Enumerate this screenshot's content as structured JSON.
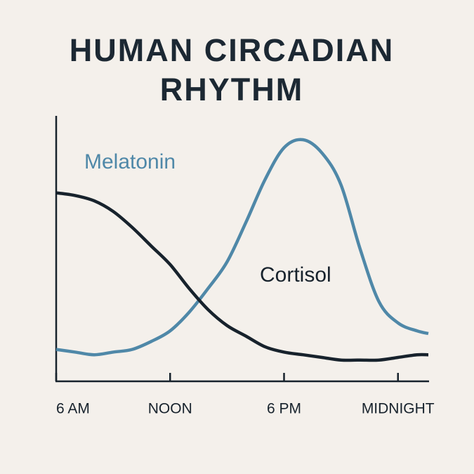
{
  "chart_data": {
    "type": "line",
    "title": "HUMAN CIRCADIAN RHYTHM",
    "x": [
      6,
      7,
      8,
      9,
      10,
      11,
      12,
      13,
      14,
      15,
      16,
      17,
      18,
      19,
      20,
      21,
      22,
      23,
      24,
      25,
      25.6
    ],
    "series": [
      {
        "name": "Melatonin",
        "color": "#4f88a8",
        "values": [
          12,
          11,
          10,
          11,
          12,
          15,
          19,
          26,
          35,
          45,
          60,
          76,
          88,
          91,
          86,
          74,
          50,
          30,
          22,
          19,
          18
        ]
      },
      {
        "name": "Cortisol",
        "color": "#17222c",
        "values": [
          71,
          70,
          68,
          64,
          58,
          51,
          44,
          35,
          27,
          21,
          17,
          13,
          11,
          10,
          9,
          8,
          8,
          8,
          9,
          10,
          10
        ]
      }
    ],
    "xlim": [
      6,
      25.6
    ],
    "ylim": [
      0,
      100
    ],
    "xticks": [
      {
        "value": 6,
        "label": "6 AM"
      },
      {
        "value": 12,
        "label": "NOON"
      },
      {
        "value": 18,
        "label": "6 PM"
      },
      {
        "value": 24,
        "label": "MIDNIGHT"
      }
    ],
    "grid": false
  }
}
